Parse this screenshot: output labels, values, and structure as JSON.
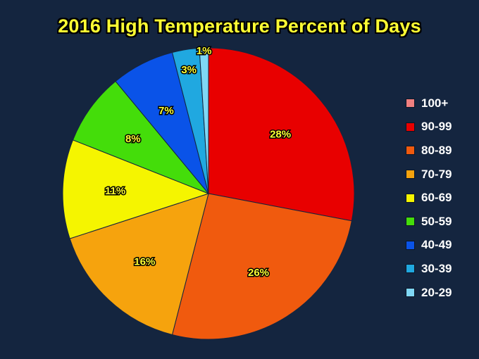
{
  "chart_data": {
    "type": "pie",
    "title": "2016 High Temperature Percent of Days",
    "slices": [
      {
        "name": "100+",
        "value": 0,
        "label": "",
        "color": "#f08080"
      },
      {
        "name": "90-99",
        "value": 28,
        "label": "28%",
        "color": "#e80000"
      },
      {
        "name": "80-89",
        "value": 26,
        "label": "26%",
        "color": "#f05a0e"
      },
      {
        "name": "70-79",
        "value": 16,
        "label": "16%",
        "color": "#f6a30d"
      },
      {
        "name": "60-69",
        "value": 11,
        "label": "11%",
        "color": "#f5f500"
      },
      {
        "name": "50-59",
        "value": 8,
        "label": "8%",
        "color": "#44dd0a"
      },
      {
        "name": "40-49",
        "value": 7,
        "label": "7%",
        "color": "#0a53e8"
      },
      {
        "name": "30-39",
        "value": 3,
        "label": "3%",
        "color": "#20a8e0"
      },
      {
        "name": "20-29",
        "value": 1,
        "label": "1%",
        "color": "#7fd7f5"
      }
    ],
    "legend_position": "right",
    "start_angle_deg": 0,
    "direction": "clockwise"
  }
}
